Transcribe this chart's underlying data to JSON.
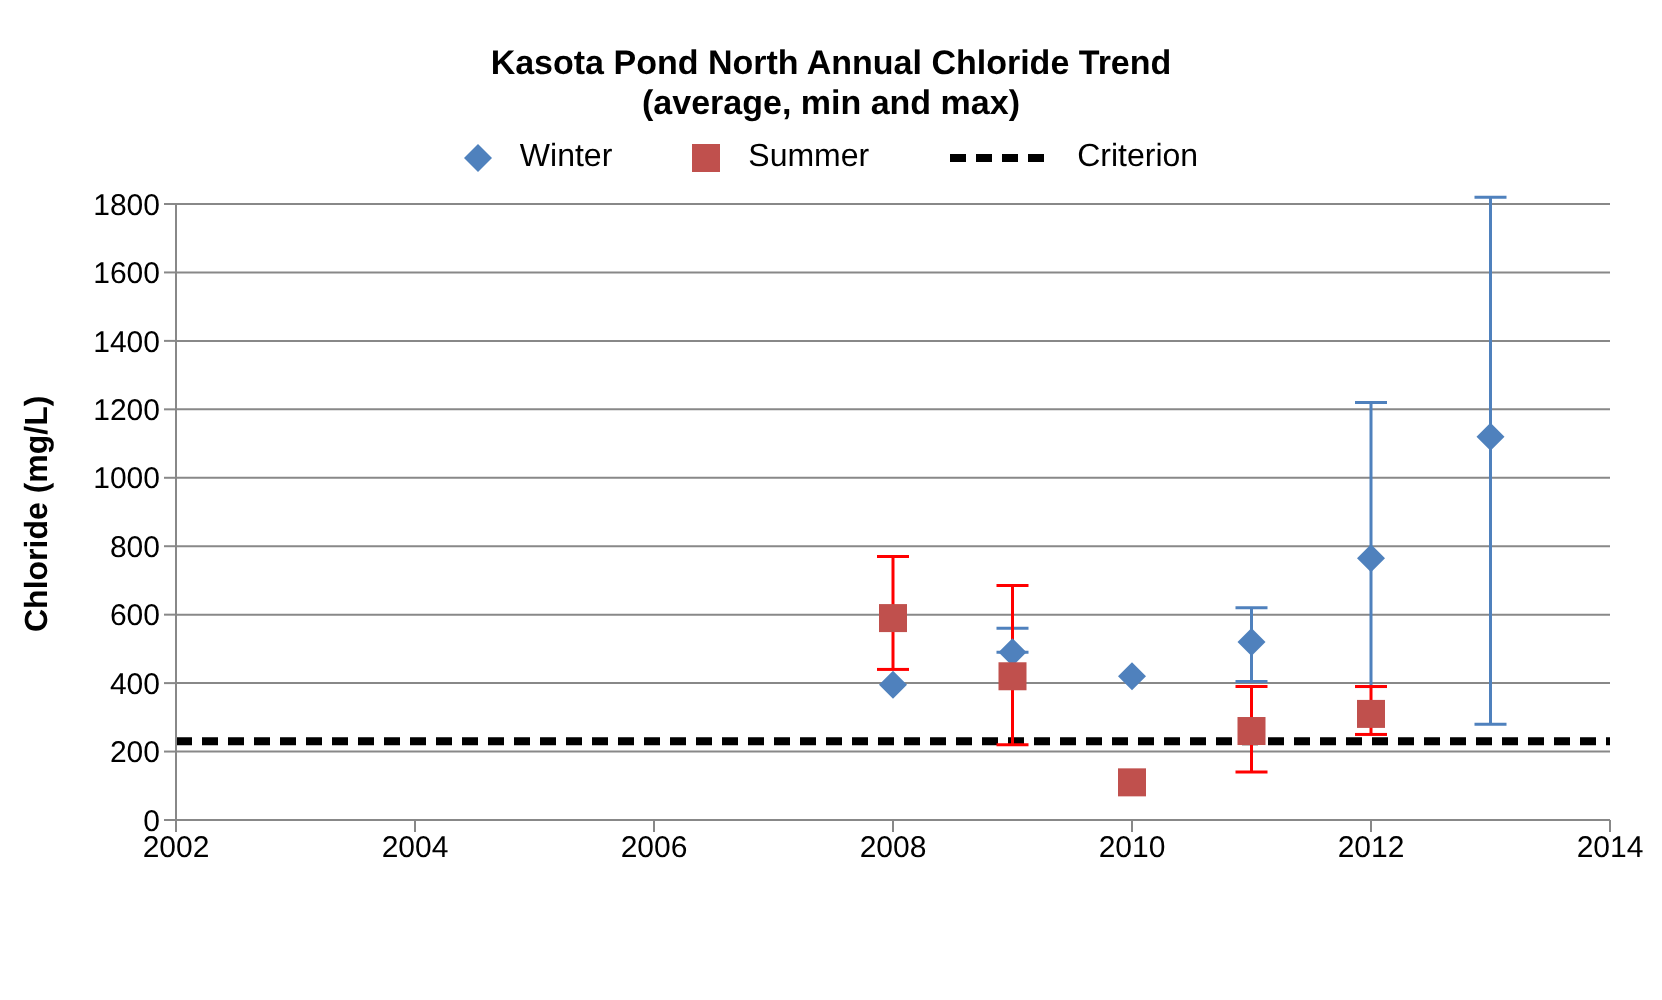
{
  "chart_data": {
    "type": "scatter",
    "title": "Kasota Pond North Annual Chloride Trend\n(average, min and max)",
    "ylabel": "Chloride (mg/L)",
    "series": [
      {
        "name": "Winter",
        "color": "#4f81bd",
        "marker": "diamond",
        "x": [
          2008,
          2009,
          2010,
          2011,
          2012,
          2013
        ],
        "values": [
          395,
          490,
          420,
          520,
          765,
          1120
        ],
        "errors": [
          null,
          [
            490,
            560
          ],
          null,
          [
            405,
            620
          ],
          [
            390,
            1220
          ],
          [
            280,
            1820
          ]
        ]
      },
      {
        "name": "Summer",
        "color": "#c0504d",
        "marker": "square",
        "x": [
          2008,
          2009,
          2010,
          2011,
          2012
        ],
        "values": [
          590,
          420,
          110,
          260,
          310
        ],
        "errors": [
          [
            440,
            770
          ],
          [
            220,
            685
          ],
          null,
          [
            140,
            390
          ],
          [
            250,
            390
          ]
        ]
      }
    ],
    "ref_lines": [
      {
        "axis": "y",
        "value": 230,
        "label": "Criterion",
        "color": "#000000",
        "line_style": "dashed"
      }
    ],
    "xlim": [
      2002,
      2014
    ],
    "xticks": [
      2002,
      2004,
      2006,
      2008,
      2010,
      2012,
      2014
    ],
    "ylim": [
      0,
      1800
    ],
    "yticks": [
      0,
      200,
      400,
      600,
      800,
      1000,
      1200,
      1400,
      1600,
      1800
    ],
    "grid": "y",
    "legend": "top"
  }
}
